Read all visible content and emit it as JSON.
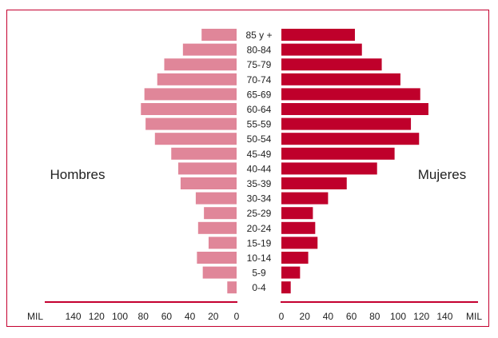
{
  "chart_data": {
    "type": "bar",
    "orientation": "horizontal",
    "layout": "population-pyramid",
    "categories": [
      "85 y +",
      "80-84",
      "75-79",
      "70-74",
      "65-69",
      "60-64",
      "55-59",
      "50-54",
      "45-49",
      "40-44",
      "35-39",
      "30-34",
      "25-29",
      "20-24",
      "15-19",
      "10-14",
      "5-9",
      "0-4"
    ],
    "series": [
      {
        "name": "Hombres",
        "side": "left",
        "color": "#e08699",
        "values": [
          30,
          46,
          62,
          68,
          79,
          82,
          78,
          70,
          56,
          50,
          48,
          35,
          28,
          33,
          24,
          34,
          29,
          8
        ]
      },
      {
        "name": "Mujeres",
        "side": "right",
        "color": "#bf002b",
        "values": [
          63,
          69,
          86,
          102,
          119,
          126,
          111,
          118,
          97,
          82,
          56,
          40,
          27,
          29,
          31,
          23,
          16,
          8
        ]
      }
    ],
    "left_label": "Hombres",
    "right_label": "Mujeres",
    "unit_label": "MIL",
    "x_ticks_left": [
      "140",
      "120",
      "100",
      "80",
      "60",
      "40",
      "20",
      "0"
    ],
    "x_ticks_right": [
      "0",
      "20",
      "40",
      "60",
      "80",
      "100",
      "120",
      "140"
    ],
    "xlim": [
      0,
      140
    ],
    "grid": false,
    "axis_color": "#c4002f"
  }
}
